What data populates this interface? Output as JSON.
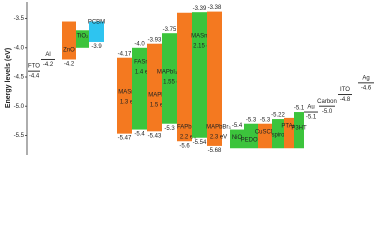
{
  "chart_data": {
    "type": "energy-levels",
    "y_label": "Energy levels (eV)",
    "ylim": [
      -5.75,
      -3.25
    ],
    "yticks": [
      -3.5,
      {
        "value": -4,
        "label": "-4.0"
      },
      -4.5,
      {
        "value": -5,
        "label": "-5.0"
      },
      -5.5
    ],
    "levels": [
      {
        "name": "FTO",
        "value": -4.4
      },
      {
        "name": "Al",
        "value": -4.2
      },
      {
        "name": "Au",
        "value": -5.1
      },
      {
        "name": "Carbon",
        "value": {
          "value": -5,
          "label": "-5.0"
        }
      },
      {
        "name": "ITO",
        "value": -4.8
      },
      {
        "name": "Ag",
        "value": -4.6
      }
    ],
    "bands": [
      {
        "name": "ZnO",
        "color": "#f47920",
        "extent": [
          -3.55
        ],
        "bottom": -4.2
      },
      {
        "name": "TiO₂",
        "color": "#3cc43c",
        "extent": [
          -3.7,
          -4.0
        ]
      },
      {
        "name": "PCBM",
        "color": "#2ec4f0",
        "extent": [
          -3.55
        ],
        "bottom": -3.9
      },
      {
        "name": "MASnI₃",
        "gap": "1.3 eV",
        "color": "#f47920",
        "top": -4.17,
        "bottom": -5.47
      },
      {
        "name": "FASnI₃",
        "gap": "1.4 eV",
        "color": "#3cc43c",
        "top": {
          "value": -4,
          "label": "-4.0"
        },
        "bottom": -5.4
      },
      {
        "name": "MAPbI₃",
        "gap": "1.5 eV",
        "color": "#f47920",
        "top": -3.93,
        "bottom": -5.43
      },
      {
        "name": "MAPbI₃₋ₓClₓ",
        "gap": "1.55 eV",
        "color": "#3cc43c",
        "top": -3.75,
        "bottom": -5.3
      },
      {
        "name": "FAPbBr₃",
        "gap": "2.2 eV",
        "color": "#f47920",
        "extent": [
          -3.4
        ],
        "bottom": -5.6
      },
      {
        "name": "MASnBr₃",
        "gap": "2.15 eV",
        "color": "#3cc43c",
        "top": -3.39,
        "bottom": -5.54
      },
      {
        "name": "MAPbBr₃",
        "gap": "2.3 eV",
        "color": "#f47920",
        "top": -3.38,
        "bottom": -5.68
      },
      {
        "name": "NiO",
        "color": "#3cc43c",
        "top": -5.4,
        "extent": [
          -5.72
        ]
      },
      {
        "name": "PEDOT",
        "color": "#3cc43c",
        "top": -5.3,
        "extent": [
          -5.72
        ]
      },
      {
        "name": "CuSCN",
        "color": "#f47920",
        "top": -5.3,
        "extent": [
          -5.72
        ]
      },
      {
        "name": "spiro",
        "color": "#3cc43c",
        "top": -5.22,
        "extent": [
          -5.72
        ]
      },
      {
        "name": "PTAA",
        "color": "#f47920",
        "extent": [
          -5.2,
          -5.72
        ]
      },
      {
        "name": "P3HT",
        "color": "#3cc43c",
        "top": -5.1,
        "extent": [
          -5.72
        ]
      }
    ]
  }
}
